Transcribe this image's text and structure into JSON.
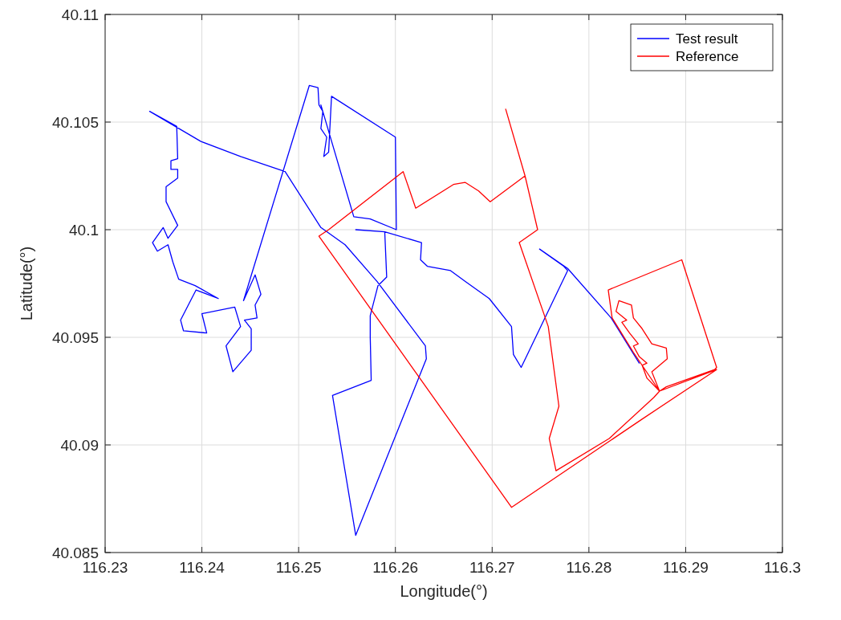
{
  "chart_data": {
    "type": "line",
    "xlabel": "Longitude(°)",
    "ylabel": "Latitude(°)",
    "xlim": [
      116.23,
      116.3
    ],
    "xticks": [
      116.23,
      116.24,
      116.25,
      116.26,
      116.27,
      116.28,
      116.29,
      116.3
    ],
    "ylim": [
      40.085,
      40.11
    ],
    "yticks": [
      40.085,
      40.09,
      40.095,
      40.1,
      40.105,
      40.11
    ],
    "grid": true,
    "legend": "top right",
    "marker": "none",
    "line_style": "solid",
    "series": [
      {
        "name": "Test result",
        "color": "#0000ff",
        "x": [
          116.2852,
          116.2823,
          116.2778,
          116.2749,
          116.2774,
          116.2778,
          116.273,
          116.2722,
          116.272,
          116.2697,
          116.2672,
          116.2657,
          116.2633,
          116.2626,
          116.2627,
          116.2589,
          116.2559,
          116.2589,
          116.2591,
          116.2582,
          116.2574,
          116.2574,
          116.2575,
          116.2535,
          116.2559,
          116.2632,
          116.2631,
          116.2581,
          116.2548,
          116.2523,
          116.2486,
          116.244,
          116.2399,
          116.2346,
          116.2374,
          116.2375,
          116.2368,
          116.2368,
          116.2375,
          116.2375,
          116.2363,
          116.2363,
          116.2375,
          116.2365,
          116.236,
          116.2349,
          116.2354,
          116.2365,
          116.237,
          116.2376,
          116.2393,
          116.2417,
          116.2394,
          116.2378,
          116.2381,
          116.2405,
          116.24,
          116.2434,
          116.244,
          116.2425,
          116.2432,
          116.2451,
          116.2451,
          116.2444,
          116.2457,
          116.2455,
          116.2461,
          116.2455,
          116.2443,
          116.2511,
          116.252,
          116.2521,
          116.2525,
          116.2523,
          116.2529,
          116.2526,
          116.2531,
          116.2534,
          116.26,
          116.2601,
          116.2574,
          116.2557,
          116.2523
        ],
        "values": [
          40.0938,
          40.0959,
          40.0982,
          40.0991,
          40.0983,
          40.0981,
          40.0936,
          40.0942,
          40.0955,
          40.0968,
          40.0976,
          40.0981,
          40.0983,
          40.0986,
          40.0994,
          40.0999,
          40.1,
          40.0999,
          40.0978,
          40.0974,
          40.096,
          40.095,
          40.093,
          40.0923,
          40.0858,
          40.094,
          40.0946,
          40.0976,
          40.0993,
          40.1001,
          40.1027,
          40.1034,
          40.1041,
          40.1055,
          40.1048,
          40.1033,
          40.1032,
          40.1028,
          40.1028,
          40.1024,
          40.102,
          40.1013,
          40.1002,
          40.0996,
          40.1001,
          40.0994,
          40.099,
          40.0993,
          40.0985,
          40.0977,
          40.0974,
          40.0968,
          40.0972,
          40.0958,
          40.0953,
          40.0952,
          40.0961,
          40.0964,
          40.0955,
          40.0946,
          40.0934,
          40.0944,
          40.0954,
          40.0958,
          40.0959,
          40.0965,
          40.097,
          40.0979,
          40.0967,
          40.1067,
          40.1066,
          40.1058,
          40.1055,
          40.1047,
          40.1043,
          40.1034,
          40.1036,
          40.1062,
          40.1043,
          40.1,
          40.1005,
          40.1006,
          40.1058
        ]
      },
      {
        "name": "Reference",
        "color": "#ff0000",
        "x": [
          116.2714,
          116.2734,
          116.2747,
          116.2728,
          116.2758,
          116.2769,
          116.2759,
          116.2766,
          116.2821,
          116.2867,
          116.2873,
          116.2846,
          116.2824,
          116.282,
          116.2896,
          116.2932,
          116.293,
          116.288,
          116.2873,
          116.286,
          116.2855,
          116.286,
          116.2852,
          116.2846,
          116.2851,
          116.2842,
          116.2834,
          116.2839,
          116.2828,
          116.2831,
          116.2844,
          116.2846,
          116.2855,
          116.2865,
          116.288,
          116.2881,
          116.2865,
          116.2873,
          116.2932,
          116.2855,
          116.272,
          116.2521,
          116.2531,
          116.2608,
          116.2621,
          116.266,
          116.2672,
          116.2686,
          116.2698,
          116.2734
        ],
        "values": [
          40.1056,
          40.1025,
          40.1,
          40.0994,
          40.0955,
          40.0918,
          40.0903,
          40.0888,
          40.0903,
          40.0922,
          40.0925,
          40.0943,
          40.0959,
          40.0972,
          40.0986,
          40.0936,
          40.0935,
          40.0927,
          40.0925,
          40.0931,
          40.0937,
          40.0938,
          40.0941,
          40.0946,
          40.0947,
          40.0952,
          40.0957,
          40.0958,
          40.0962,
          40.0967,
          40.0965,
          40.0959,
          40.0954,
          40.0947,
          40.0945,
          40.094,
          40.0934,
          40.0925,
          40.0935,
          40.0912,
          40.0871,
          40.0997,
          40.1,
          40.1027,
          40.101,
          40.1021,
          40.1022,
          40.1018,
          40.1013,
          40.1025
        ]
      }
    ]
  }
}
